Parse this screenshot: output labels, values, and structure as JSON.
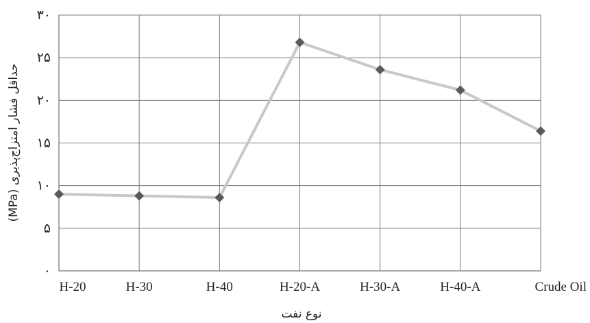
{
  "chart_data": {
    "type": "line",
    "title": "",
    "xlabel": "نوع نفت",
    "ylabel": "حداقل فشار امتزاج‌پذیری (MPa)",
    "categories": [
      "H-20",
      "H-30",
      "H-40",
      "H-20-A",
      "H-30-A",
      "H-40-A",
      "Crude Oil"
    ],
    "y_tick_labels": [
      "۰",
      "۵",
      "۱۰",
      "۱۵",
      "۲۰",
      "۲۵",
      "۳۰"
    ],
    "ylim": [
      0,
      30
    ],
    "grid": true,
    "legend": "none",
    "series": [
      {
        "values": [
          9.0,
          8.8,
          8.6,
          26.8,
          23.6,
          21.2,
          16.4
        ],
        "line_color": "#c8c8c8",
        "marker_color": "#5a5a5a",
        "marker": "diamond"
      }
    ]
  }
}
